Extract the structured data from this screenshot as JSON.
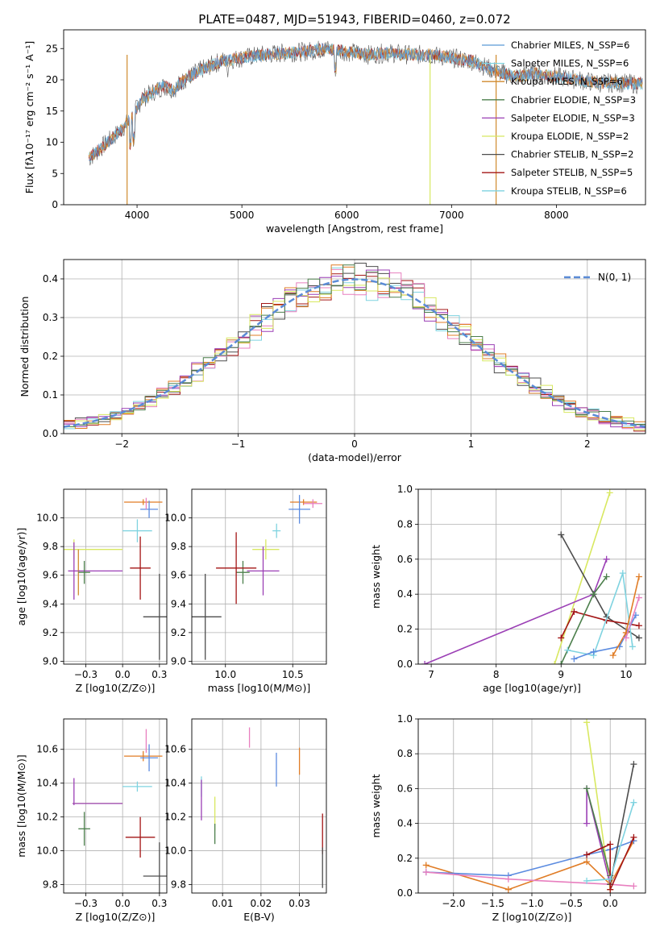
{
  "suptitle": "PLATE=0487, MJD=51943, FIBERID=0460, z=0.072",
  "colors": {
    "chabrier_miles": "#5a9bd5",
    "salpeter_miles": "#7fd3e0",
    "kroupa_miles": "#d08a2e",
    "chabrier_elodie": "#4c7f4c",
    "salpeter_elodie": "#9b3fb5",
    "kroupa_elodie": "#d8e860",
    "chabrier_stelib": "#4d4d4d",
    "salpeter_stelib": "#a31515",
    "kroupa_stelib": "#7fd3e0",
    "pink": "#e87fbf",
    "blue": "#5b8be0",
    "orange": "#e07c25",
    "normal_curve": "#5b8bd6"
  },
  "chart_data": [
    {
      "id": "spectrum",
      "type": "line",
      "xlabel": "wavelength [Angstrom, rest frame]",
      "ylabel": "Flux [fλ10⁻¹⁷ erg cm⁻² s⁻¹ A⁻¹]",
      "xlim": [
        3300,
        8850
      ],
      "ylim": [
        0,
        28
      ],
      "xticks": [
        4000,
        5000,
        6000,
        7000,
        8000
      ],
      "yticks": [
        0,
        5,
        10,
        15,
        20,
        25
      ],
      "legend_position": "top-right",
      "legend": [
        "Chabrier MILES, N_SSP=6",
        "Salpeter MILES, N_SSP=6",
        "Kroupa MILES, N_SSP=6",
        "Chabrier ELODIE, N_SSP=3",
        "Salpeter ELODIE, N_SSP=3",
        "Kroupa ELODIE, N_SSP=2",
        "Chabrier STELIB, N_SSP=2",
        "Salpeter STELIB, N_SSP=5",
        "Kroupa STELIB, N_SSP=6"
      ],
      "x": [
        3550,
        3650,
        3750,
        3850,
        3950,
        4050,
        4150,
        4250,
        4350,
        4450,
        4600,
        4800,
        5000,
        5200,
        5400,
        5600,
        5800,
        6000,
        6200,
        6400,
        6600,
        6800,
        7000,
        7200,
        7400,
        7600,
        7800,
        8000,
        8200,
        8400,
        8600,
        8800
      ],
      "y": [
        7.5,
        9.0,
        10.5,
        12.0,
        14.0,
        17.0,
        18.0,
        19.0,
        18.5,
        20.0,
        21.5,
        23.0,
        23.5,
        24.0,
        24.3,
        24.5,
        25.0,
        24.5,
        24.0,
        24.3,
        24.0,
        24.0,
        23.5,
        23.0,
        21.5,
        20.5,
        21.0,
        20.5,
        20.0,
        19.5,
        19.5,
        19.3
      ]
    },
    {
      "id": "residuals",
      "type": "line",
      "xlabel": "(data-model)/error",
      "ylabel": "Normed distribution",
      "xlim": [
        -2.5,
        2.5
      ],
      "ylim": [
        0,
        0.45
      ],
      "xticks": [
        -2,
        -1,
        0,
        1,
        2
      ],
      "yticks": [
        0.0,
        0.1,
        0.2,
        0.3,
        0.4
      ],
      "legend_position": "top-right",
      "legend": [
        "N(0, 1)"
      ],
      "series": [
        {
          "name": "N(0, 1)",
          "function": "standard normal pdf"
        }
      ]
    },
    {
      "id": "age-vs-z",
      "type": "scatter",
      "xlabel": "Z [log10(Z/Z⊙)]",
      "ylabel": "age  [log10(age/yr)]",
      "xlim": [
        -0.4,
        0.3
      ],
      "ylim": [
        8.98,
        10.2
      ],
      "xticks": [
        -0.25,
        0.0,
        0.25
      ],
      "yticks": [
        9.0,
        9.2,
        9.4,
        9.6,
        9.8,
        10.0
      ],
      "points": [
        {
          "x": 0.14,
          "y": 10.11,
          "xerr": 0.13,
          "yerr": 0.02,
          "c": "orange"
        },
        {
          "x": 0.18,
          "y": 10.06,
          "xerr": 0.06,
          "yerr": 0.06,
          "c": "blue"
        },
        {
          "x": 0.16,
          "y": 10.1,
          "xerr": 0.0,
          "yerr": 0.04,
          "c": "pink"
        },
        {
          "x": 0.1,
          "y": 9.91,
          "xerr": 0.1,
          "yerr": 0.08,
          "c": "salpeter_miles"
        },
        {
          "x": -0.33,
          "y": 9.78,
          "xerr": 0.33,
          "yerr": 0.07,
          "c": "kroupa_elodie"
        },
        {
          "x": -0.33,
          "y": 9.63,
          "xerr": 0.04,
          "yerr": 0.2,
          "c": "salpeter_elodie"
        },
        {
          "x": -0.3,
          "y": 9.62,
          "xerr": 0.0,
          "yerr": 0.16,
          "c": "kroupa_miles"
        },
        {
          "x": -0.15,
          "y": 9.63,
          "xerr": 0.15,
          "yerr": 0.0,
          "c": "salpeter_elodie"
        },
        {
          "x": -0.26,
          "y": 9.62,
          "xerr": 0.04,
          "yerr": 0.08,
          "c": "chabrier_elodie"
        },
        {
          "x": 0.12,
          "y": 9.65,
          "xerr": 0.07,
          "yerr": 0.22,
          "c": "salpeter_stelib"
        },
        {
          "x": 0.25,
          "y": 9.31,
          "xerr": 0.11,
          "yerr": 0.3,
          "c": "chabrier_stelib"
        }
      ]
    },
    {
      "id": "age-vs-mass",
      "type": "scatter",
      "xlabel": "mass [log10(M/M⊙)]",
      "ylabel": "",
      "xlim": [
        9.75,
        10.75
      ],
      "ylim": [
        8.98,
        10.2
      ],
      "xticks": [
        10.0,
        10.5
      ],
      "yticks": [
        9.0,
        9.2,
        9.4,
        9.6,
        9.8,
        10.0
      ],
      "points": [
        {
          "x": 10.58,
          "y": 10.11,
          "xerr": 0.1,
          "yerr": 0.02,
          "c": "orange"
        },
        {
          "x": 10.65,
          "y": 10.1,
          "xerr": 0.07,
          "yerr": 0.03,
          "c": "pink"
        },
        {
          "x": 10.55,
          "y": 10.06,
          "xerr": 0.08,
          "yerr": 0.1,
          "c": "blue"
        },
        {
          "x": 10.38,
          "y": 9.91,
          "xerr": 0.03,
          "yerr": 0.05,
          "c": "salpeter_miles"
        },
        {
          "x": 10.3,
          "y": 9.78,
          "xerr": 0.1,
          "yerr": 0.07,
          "c": "kroupa_elodie"
        },
        {
          "x": 10.28,
          "y": 9.63,
          "xerr": 0.12,
          "yerr": 0.17,
          "c": "salpeter_elodie"
        },
        {
          "x": 10.13,
          "y": 9.62,
          "xerr": 0.05,
          "yerr": 0.08,
          "c": "chabrier_elodie"
        },
        {
          "x": 10.08,
          "y": 9.65,
          "xerr": 0.15,
          "yerr": 0.25,
          "c": "salpeter_stelib"
        },
        {
          "x": 9.85,
          "y": 9.31,
          "xerr": 0.12,
          "yerr": 0.3,
          "c": "chabrier_stelib"
        }
      ]
    },
    {
      "id": "mass-weight-vs-age",
      "type": "line",
      "xlabel": "age  [log10(age/yr)]",
      "ylabel": "mass weight",
      "xlim": [
        6.8,
        10.3
      ],
      "ylim": [
        0.0,
        1.0
      ],
      "xticks": [
        7,
        8,
        9,
        10
      ],
      "yticks": [
        0.0,
        0.2,
        0.4,
        0.6,
        0.8,
        1.0
      ],
      "series": [
        {
          "c": "kroupa_elodie",
          "x": [
            8.9,
            9.75
          ],
          "y": [
            0.0,
            0.98
          ]
        },
        {
          "c": "chabrier_stelib",
          "x": [
            9.0,
            9.7,
            10.2
          ],
          "y": [
            0.74,
            0.27,
            0.15
          ]
        },
        {
          "c": "salpeter_elodie",
          "x": [
            6.9,
            9.5,
            9.7
          ],
          "y": [
            0.0,
            0.4,
            0.6
          ]
        },
        {
          "c": "salpeter_stelib",
          "x": [
            9.0,
            9.2,
            9.7,
            10.2
          ],
          "y": [
            0.15,
            0.3,
            0.25,
            0.22
          ]
        },
        {
          "c": "chabrier_elodie",
          "x": [
            9.0,
            9.5,
            9.7
          ],
          "y": [
            0.0,
            0.4,
            0.5
          ]
        },
        {
          "c": "salpeter_miles",
          "x": [
            9.1,
            9.5,
            9.95,
            10.1
          ],
          "y": [
            0.08,
            0.05,
            0.52,
            0.1
          ]
        },
        {
          "c": "blue",
          "x": [
            9.2,
            9.5,
            9.9,
            10.15
          ],
          "y": [
            0.03,
            0.07,
            0.1,
            0.28
          ]
        },
        {
          "c": "orange",
          "x": [
            9.8,
            10.0,
            10.2
          ],
          "y": [
            0.05,
            0.18,
            0.5
          ]
        },
        {
          "c": "pink",
          "x": [
            10.0,
            10.2
          ],
          "y": [
            0.15,
            0.38
          ]
        }
      ]
    },
    {
      "id": "mass-vs-z",
      "type": "scatter",
      "xlabel": "Z [log10(Z/Z⊙)]",
      "ylabel": "mass [log10(M/M⊙)]",
      "xlim": [
        -0.4,
        0.3
      ],
      "ylim": [
        9.75,
        10.78
      ],
      "xticks": [
        -0.25,
        0.0,
        0.25
      ],
      "yticks": [
        9.8,
        10.0,
        10.2,
        10.4,
        10.6
      ],
      "points": [
        {
          "x": 0.16,
          "y": 10.65,
          "xerr": 0.0,
          "yerr": 0.07,
          "c": "pink"
        },
        {
          "x": 0.14,
          "y": 10.56,
          "xerr": 0.13,
          "yerr": 0.03,
          "c": "orange"
        },
        {
          "x": 0.18,
          "y": 10.55,
          "xerr": 0.06,
          "yerr": 0.08,
          "c": "blue"
        },
        {
          "x": 0.1,
          "y": 10.38,
          "xerr": 0.1,
          "yerr": 0.03,
          "c": "salpeter_miles"
        },
        {
          "x": -0.33,
          "y": 10.35,
          "xerr": 0.0,
          "yerr": 0.08,
          "c": "salpeter_elodie"
        },
        {
          "x": -0.17,
          "y": 10.28,
          "xerr": 0.17,
          "yerr": 0.0,
          "c": "kroupa_elodie"
        },
        {
          "x": -0.17,
          "y": 10.28,
          "xerr": 0.17,
          "yerr": 0.0,
          "c": "salpeter_elodie"
        },
        {
          "x": -0.26,
          "y": 10.13,
          "xerr": 0.04,
          "yerr": 0.1,
          "c": "chabrier_elodie"
        },
        {
          "x": 0.12,
          "y": 10.08,
          "xerr": 0.1,
          "yerr": 0.12,
          "c": "salpeter_stelib"
        },
        {
          "x": 0.25,
          "y": 9.85,
          "xerr": 0.11,
          "yerr": 0.2,
          "c": "chabrier_stelib"
        }
      ]
    },
    {
      "id": "mass-vs-ebv",
      "type": "scatter",
      "xlabel": "E(B-V)",
      "ylabel": "",
      "xlim": [
        0.002,
        0.037
      ],
      "ylim": [
        9.75,
        10.78
      ],
      "xticks": [
        0.01,
        0.02,
        0.03
      ],
      "yticks": [
        9.8,
        10.0,
        10.2,
        10.4,
        10.6
      ],
      "points": [
        {
          "x": 0.017,
          "y": 10.67,
          "xerr": 0.0,
          "yerr": 0.06,
          "c": "pink"
        },
        {
          "x": 0.024,
          "y": 10.48,
          "xerr": 0.0,
          "yerr": 0.1,
          "c": "blue"
        },
        {
          "x": 0.03,
          "y": 10.53,
          "xerr": 0.0,
          "yerr": 0.08,
          "c": "orange"
        },
        {
          "x": 0.0045,
          "y": 10.38,
          "xerr": 0.0,
          "yerr": 0.06,
          "c": "salpeter_miles"
        },
        {
          "x": 0.0045,
          "y": 10.3,
          "xerr": 0.0,
          "yerr": 0.12,
          "c": "salpeter_elodie"
        },
        {
          "x": 0.008,
          "y": 10.22,
          "xerr": 0.0,
          "yerr": 0.1,
          "c": "kroupa_elodie"
        },
        {
          "x": 0.008,
          "y": 10.1,
          "xerr": 0.0,
          "yerr": 0.06,
          "c": "chabrier_elodie"
        },
        {
          "x": 0.036,
          "y": 10.1,
          "xerr": 0.0,
          "yerr": 0.12,
          "c": "salpeter_stelib"
        },
        {
          "x": 0.036,
          "y": 9.9,
          "xerr": 0.0,
          "yerr": 0.12,
          "c": "chabrier_stelib"
        }
      ]
    },
    {
      "id": "mass-weight-vs-z",
      "type": "line",
      "xlabel": "Z [log10(Z/Z⊙)]",
      "ylabel": "mass weight",
      "xlim": [
        -2.45,
        0.45
      ],
      "ylim": [
        0.0,
        1.0
      ],
      "xticks": [
        -2.0,
        -1.5,
        -1.0,
        -0.5,
        0.0
      ],
      "yticks": [
        0.0,
        0.2,
        0.4,
        0.6,
        0.8,
        1.0
      ],
      "series": [
        {
          "c": "orange",
          "x": [
            -2.35,
            -1.3,
            -0.3,
            0.0,
            0.3
          ],
          "y": [
            0.16,
            0.02,
            0.18,
            0.05,
            0.3
          ]
        },
        {
          "c": "blue",
          "x": [
            -2.35,
            -1.3,
            -0.3,
            0.0,
            0.3
          ],
          "y": [
            0.12,
            0.1,
            0.22,
            0.25,
            0.3
          ]
        },
        {
          "c": "pink",
          "x": [
            -2.35,
            -1.3,
            0.0,
            0.3
          ],
          "y": [
            0.12,
            0.08,
            0.05,
            0.04
          ]
        },
        {
          "c": "kroupa_elodie",
          "x": [
            -0.3,
            0.0
          ],
          "y": [
            0.98,
            0.02
          ]
        },
        {
          "c": "salpeter_elodie",
          "x": [
            -0.3,
            -0.3,
            0.0
          ],
          "y": [
            0.4,
            0.6,
            0.05
          ]
        },
        {
          "c": "chabrier_elodie",
          "x": [
            -0.3,
            0.0
          ],
          "y": [
            0.6,
            0.1
          ]
        },
        {
          "c": "chabrier_stelib",
          "x": [
            0.0,
            0.3
          ],
          "y": [
            0.05,
            0.74
          ]
        },
        {
          "c": "salpeter_stelib",
          "x": [
            -0.3,
            0.0,
            0.0,
            0.3
          ],
          "y": [
            0.22,
            0.28,
            0.02,
            0.32
          ]
        },
        {
          "c": "salpeter_miles",
          "x": [
            -0.3,
            0.0,
            0.3
          ],
          "y": [
            0.07,
            0.08,
            0.52
          ]
        }
      ]
    }
  ]
}
